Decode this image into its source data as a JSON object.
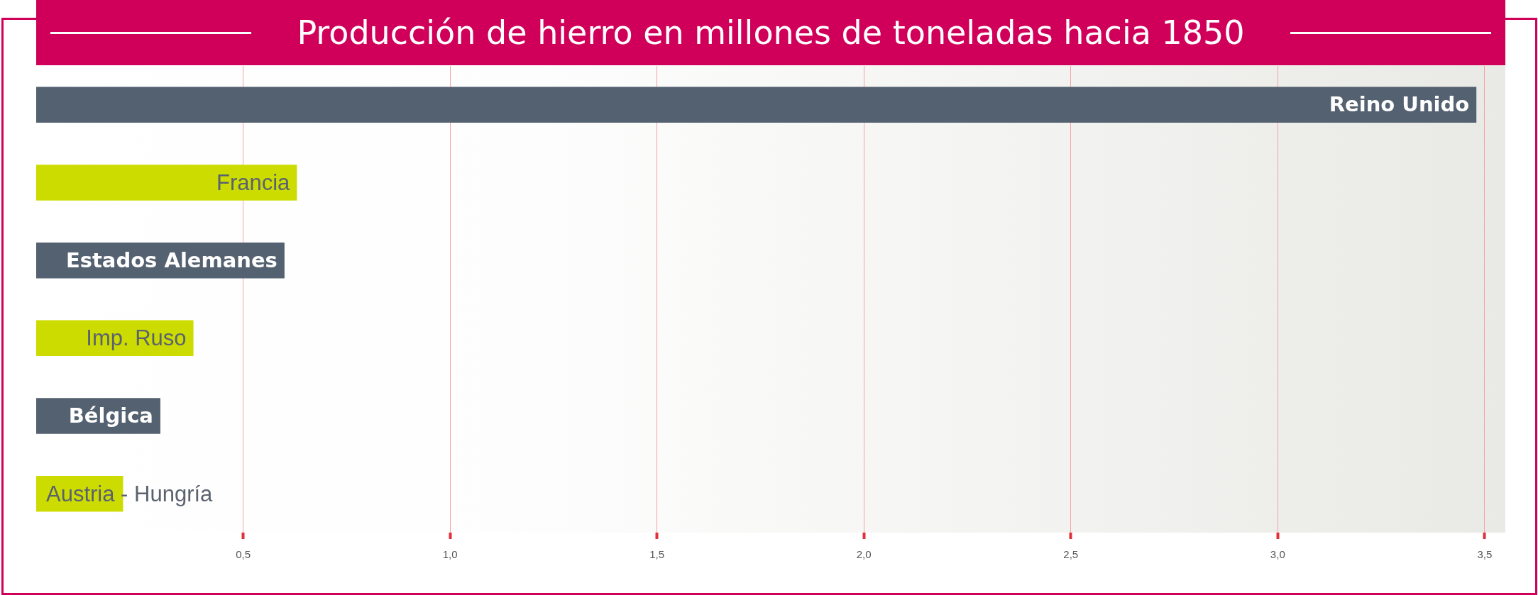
{
  "chart_data": {
    "type": "bar",
    "orientation": "horizontal",
    "title": "Producción de hierro en millones de toneladas hacia 1850",
    "categories": [
      "Reino Unido",
      "Francia",
      "Estados Alemanes",
      "Imp. Ruso",
      "Bélgica",
      "Austria - Hungría"
    ],
    "values": [
      3.48,
      0.63,
      0.6,
      0.38,
      0.3,
      0.21
    ],
    "colors": [
      "#546170",
      "#cddc00",
      "#546170",
      "#cddc00",
      "#546170",
      "#cddc00"
    ],
    "xlim": [
      0,
      3.55
    ],
    "xticks": [
      {
        "value": 0.5,
        "label": "0,5"
      },
      {
        "value": 1,
        "label": "1,0"
      },
      {
        "value": 1.5,
        "label": "1,5"
      },
      {
        "value": 2,
        "label": "2,0"
      },
      {
        "value": 2.5,
        "label": "2,5"
      },
      {
        "value": 3,
        "label": "3,0"
      },
      {
        "value": 3.5,
        "label": "3,5"
      }
    ],
    "grid": "x",
    "tick_labels": "x"
  }
}
